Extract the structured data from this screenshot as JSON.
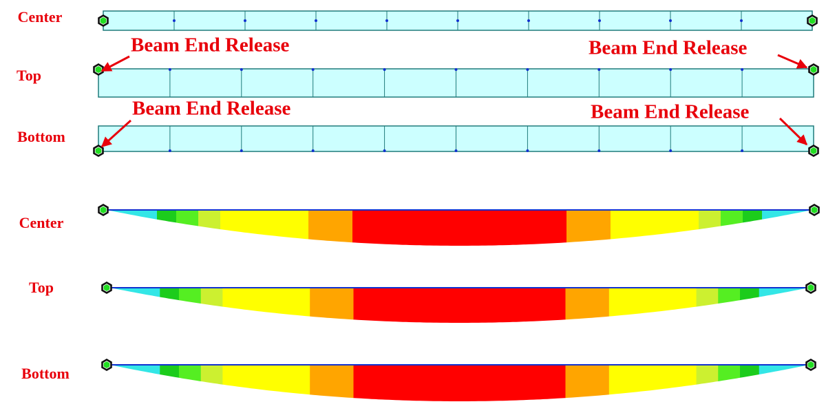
{
  "beams": [
    {
      "label": "Center"
    },
    {
      "label": "Top",
      "annotations": [
        "Beam End Release",
        "Beam End Release"
      ]
    },
    {
      "label": "Bottom",
      "annotations": [
        "Beam End Release",
        "Beam End Release"
      ]
    }
  ],
  "diagrams": [
    {
      "label": "Center"
    },
    {
      "label": "Top"
    },
    {
      "label": "Bottom"
    }
  ]
}
